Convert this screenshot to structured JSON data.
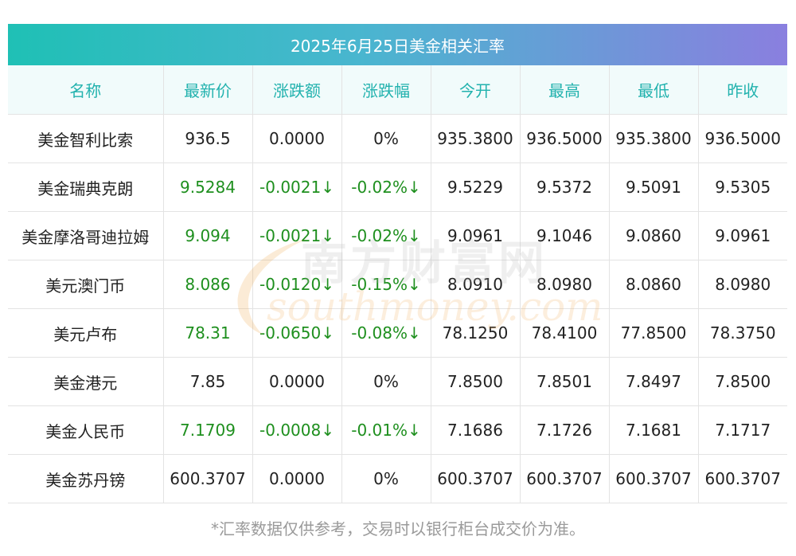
{
  "title": "2025年6月25日美金相关汇率",
  "columns": [
    "名称",
    "最新价",
    "涨跌额",
    "涨跌幅",
    "今开",
    "最高",
    "最低",
    "昨收"
  ],
  "rows": [
    {
      "name": "美金智利比索",
      "latest": "936.5",
      "change": "0.0000",
      "pct": "0%",
      "open": "935.3800",
      "high": "936.5000",
      "low": "935.3800",
      "prev": "936.5000",
      "dir": "flat"
    },
    {
      "name": "美金瑞典克朗",
      "latest": "9.5284",
      "change": "-0.0021↓",
      "pct": "-0.02%↓",
      "open": "9.5229",
      "high": "9.5372",
      "low": "9.5091",
      "prev": "9.5305",
      "dir": "down"
    },
    {
      "name": "美金摩洛哥迪拉姆",
      "latest": "9.094",
      "change": "-0.0021↓",
      "pct": "-0.02%↓",
      "open": "9.0961",
      "high": "9.1046",
      "low": "9.0860",
      "prev": "9.0961",
      "dir": "down"
    },
    {
      "name": "美元澳门币",
      "latest": "8.086",
      "change": "-0.0120↓",
      "pct": "-0.15%↓",
      "open": "8.0910",
      "high": "8.0980",
      "low": "8.0860",
      "prev": "8.0980",
      "dir": "down"
    },
    {
      "name": "美元卢布",
      "latest": "78.31",
      "change": "-0.0650↓",
      "pct": "-0.08%↓",
      "open": "78.1250",
      "high": "78.4100",
      "low": "77.8500",
      "prev": "78.3750",
      "dir": "down"
    },
    {
      "name": "美金港元",
      "latest": "7.85",
      "change": "0.0000",
      "pct": "0%",
      "open": "7.8500",
      "high": "7.8501",
      "low": "7.8497",
      "prev": "7.8500",
      "dir": "flat"
    },
    {
      "name": "美金人民币",
      "latest": "7.1709",
      "change": "-0.0008↓",
      "pct": "-0.01%↓",
      "open": "7.1686",
      "high": "7.1726",
      "low": "7.1681",
      "prev": "7.1717",
      "dir": "down"
    },
    {
      "name": "美金苏丹镑",
      "latest": "600.3707",
      "change": "0.0000",
      "pct": "0%",
      "open": "600.3707",
      "high": "600.3707",
      "low": "600.3707",
      "prev": "600.3707",
      "dir": "flat"
    }
  ],
  "footnote": "*汇率数据仅供参考，交易时以银行柜台成交价为准。",
  "watermark": {
    "cn": "南方财富网",
    "en": "southmoney.com"
  },
  "colors": {
    "header_text": "#22b2ae",
    "down": "#1e8f1e",
    "title_gradient_start": "#1fc0b5",
    "title_gradient_end": "#8a7fdf"
  }
}
